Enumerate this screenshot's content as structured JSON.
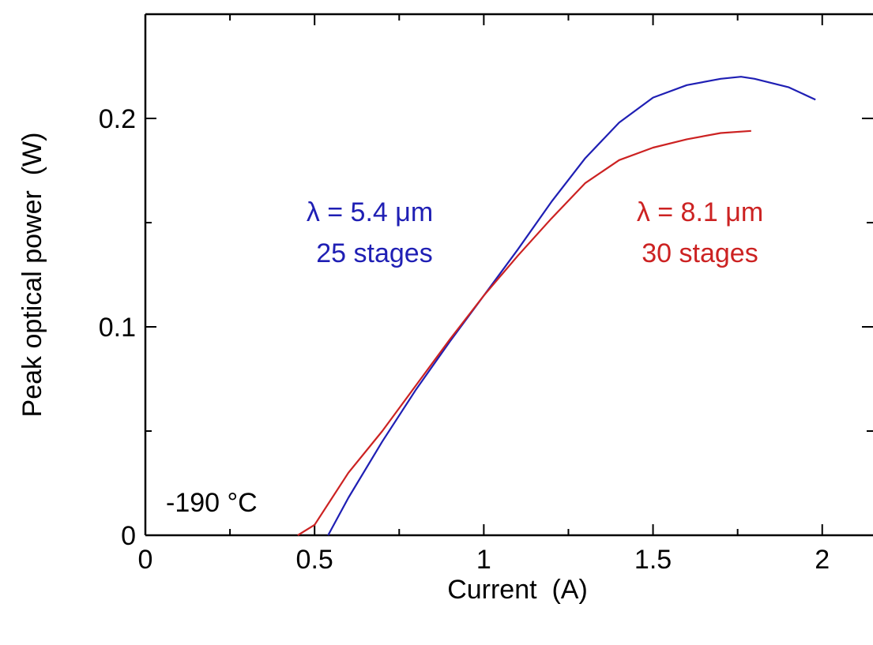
{
  "chart_data": {
    "type": "line",
    "title": "",
    "xlabel": "Current  (A)",
    "ylabel": "Peak optical power  (W)",
    "xlim": [
      0,
      2.15
    ],
    "ylim": [
      0,
      0.25
    ],
    "x_ticks": [
      0,
      0.5,
      1,
      1.5,
      2
    ],
    "x_tick_labels": [
      "0",
      "0.5",
      "1",
      "1.5",
      "2"
    ],
    "y_ticks": [
      0,
      0.1,
      0.2
    ],
    "y_tick_labels": [
      "0",
      "0.1",
      "0.2"
    ],
    "grid": false,
    "series": [
      {
        "name": "λ = 5.4 μm, 25 stages",
        "color": "#1f1fb4",
        "x": [
          0.54,
          0.6,
          0.7,
          0.8,
          0.9,
          1.0,
          1.1,
          1.2,
          1.3,
          1.4,
          1.5,
          1.6,
          1.7,
          1.76,
          1.8,
          1.9,
          1.98
        ],
        "y": [
          0.0,
          0.018,
          0.045,
          0.07,
          0.093,
          0.115,
          0.137,
          0.16,
          0.181,
          0.198,
          0.21,
          0.216,
          0.219,
          0.22,
          0.219,
          0.215,
          0.209
        ]
      },
      {
        "name": "λ = 8.1 μm, 30 stages",
        "color": "#cc2222",
        "x": [
          0.45,
          0.5,
          0.6,
          0.7,
          0.8,
          0.9,
          1.0,
          1.1,
          1.2,
          1.3,
          1.4,
          1.5,
          1.6,
          1.7,
          1.79
        ],
        "y": [
          0.0,
          0.005,
          0.03,
          0.05,
          0.072,
          0.094,
          0.115,
          0.134,
          0.152,
          0.169,
          0.18,
          0.186,
          0.19,
          0.193,
          0.194
        ]
      }
    ],
    "annotations": {
      "blue_line1": "λ = 5.4 μm",
      "blue_line2": "25 stages",
      "red_line1": "λ = 8.1 μm",
      "red_line2": "30 stages",
      "temperature": "-190 °C"
    }
  }
}
